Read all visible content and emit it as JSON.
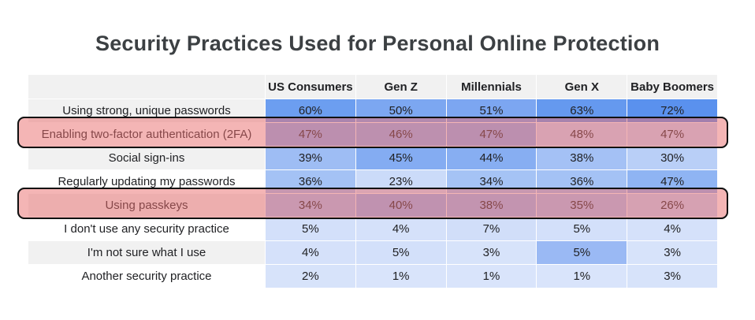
{
  "chart_data": {
    "type": "table",
    "title": "Security Practices Used for Personal Online Protection",
    "columns": [
      "US Consumers",
      "Gen Z",
      "Millennials",
      "Gen X",
      "Baby Boomers"
    ],
    "rows": [
      {
        "label": "Using strong, unique passwords",
        "values": [
          "60%",
          "50%",
          "51%",
          "63%",
          "72%"
        ],
        "highlighted": false
      },
      {
        "label": "Enabling two-factor authentication (2FA)",
        "values": [
          "47%",
          "46%",
          "47%",
          "48%",
          "47%"
        ],
        "highlighted": true
      },
      {
        "label": "Social sign-ins",
        "values": [
          "39%",
          "45%",
          "44%",
          "38%",
          "30%"
        ],
        "highlighted": false
      },
      {
        "label": "Regularly updating my passwords",
        "values": [
          "36%",
          "23%",
          "34%",
          "36%",
          "47%"
        ],
        "highlighted": false
      },
      {
        "label": "Using passkeys",
        "values": [
          "34%",
          "40%",
          "38%",
          "35%",
          "26%"
        ],
        "highlighted": true
      },
      {
        "label": "I don't use any security practice",
        "values": [
          "5%",
          "4%",
          "7%",
          "5%",
          "4%"
        ],
        "highlighted": false
      },
      {
        "label": "I'm not sure what I use",
        "values": [
          "4%",
          "5%",
          "3%",
          "5%",
          "3%"
        ],
        "highlighted": false
      },
      {
        "label": "Another security practice",
        "values": [
          "2%",
          "1%",
          "1%",
          "1%",
          "3%"
        ],
        "highlighted": false
      }
    ],
    "cell_colors": [
      [
        "#6c9ef0",
        "#7ca7f1",
        "#7ca6f1",
        "#6599ef",
        "#5a91ee"
      ],
      [
        "#8db2f3",
        "#8fb4f3",
        "#8db2f3",
        "#c8d8f8",
        "#c8d8f8"
      ],
      [
        "#9ebdf4",
        "#84acf2",
        "#87aef2",
        "#a4c1f5",
        "#b9cff7"
      ],
      [
        "#a4c2f5",
        "#cbdbf9",
        "#a5c3f5",
        "#a4c2f5",
        "#8fb4f3"
      ],
      [
        "#a9c4f5",
        "#96b8f4",
        "#9bbbf4",
        "#a9c4f5",
        "#c2d5f8"
      ],
      [
        "#d3e0fa",
        "#d5e1fa",
        "#d1def9",
        "#d3e0fa",
        "#d5e1fa"
      ],
      [
        "#d5e1fa",
        "#d3e0fa",
        "#d7e3fa",
        "#9ab9f4",
        "#d7e3fa"
      ],
      [
        "#d7e3fa",
        "#d9e4fb",
        "#d9e4fb",
        "#d9e4fb",
        "#d7e3fa"
      ]
    ],
    "highlight_color": "#eb6e6e",
    "label_shading": [
      true,
      false,
      true,
      false,
      true,
      false,
      true,
      false
    ]
  }
}
